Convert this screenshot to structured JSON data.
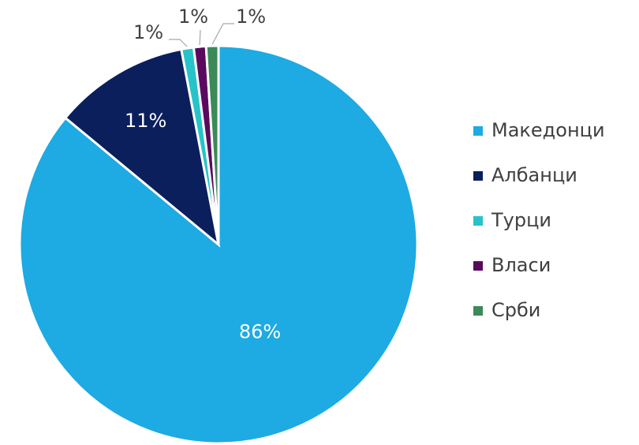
{
  "chart_data": {
    "type": "pie",
    "categories": [
      "Македонци",
      "Албанци",
      "Турци",
      "Власи",
      "Срби"
    ],
    "values": [
      86,
      11,
      1,
      1,
      1
    ],
    "value_labels": [
      "86%",
      "11%",
      "1%",
      "1%",
      "1%"
    ],
    "colors": [
      "#1eaae2",
      "#0b1f5c",
      "#27c3c8",
      "#5a0a5e",
      "#3b8a57"
    ],
    "legend": "right"
  }
}
